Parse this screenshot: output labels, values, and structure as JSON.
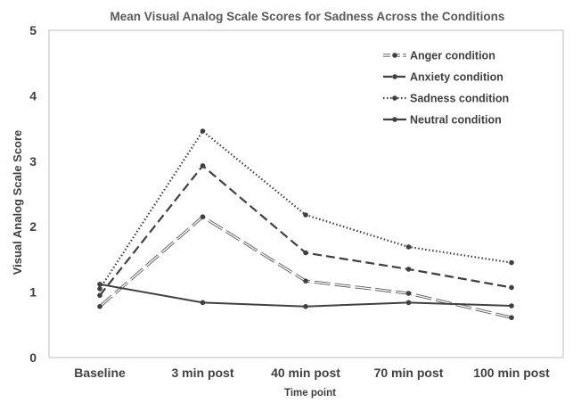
{
  "chart_data": {
    "type": "line",
    "title": "Mean Visual Analog Scale Scores for Sadness Across the Conditions",
    "xlabel": "Time point",
    "ylabel": "Visual Analog Scale Score",
    "categories": [
      "Baseline",
      "3 min  post",
      "40 min post",
      "70 min post",
      "100 min post"
    ],
    "ylim": [
      0,
      5
    ],
    "yticks": [
      0,
      1,
      2,
      3,
      4,
      5
    ],
    "grid": false,
    "legend_position": "top-right",
    "series": [
      {
        "name": "Anger condition",
        "values": [
          0.78,
          2.15,
          1.17,
          0.98,
          0.61
        ],
        "style": "long-dash-double",
        "color": "#8c8c8c"
      },
      {
        "name": "Anxiety condition",
        "values": [
          0.95,
          2.93,
          1.6,
          1.35,
          1.07
        ],
        "style": "dash",
        "color": "#404040"
      },
      {
        "name": "Sadness condition",
        "values": [
          1.05,
          3.46,
          2.18,
          1.69,
          1.45
        ],
        "style": "dotted",
        "color": "#404040"
      },
      {
        "name": "Neutral condition",
        "values": [
          1.12,
          0.84,
          0.78,
          0.84,
          0.79
        ],
        "style": "solid",
        "color": "#404040"
      }
    ]
  }
}
